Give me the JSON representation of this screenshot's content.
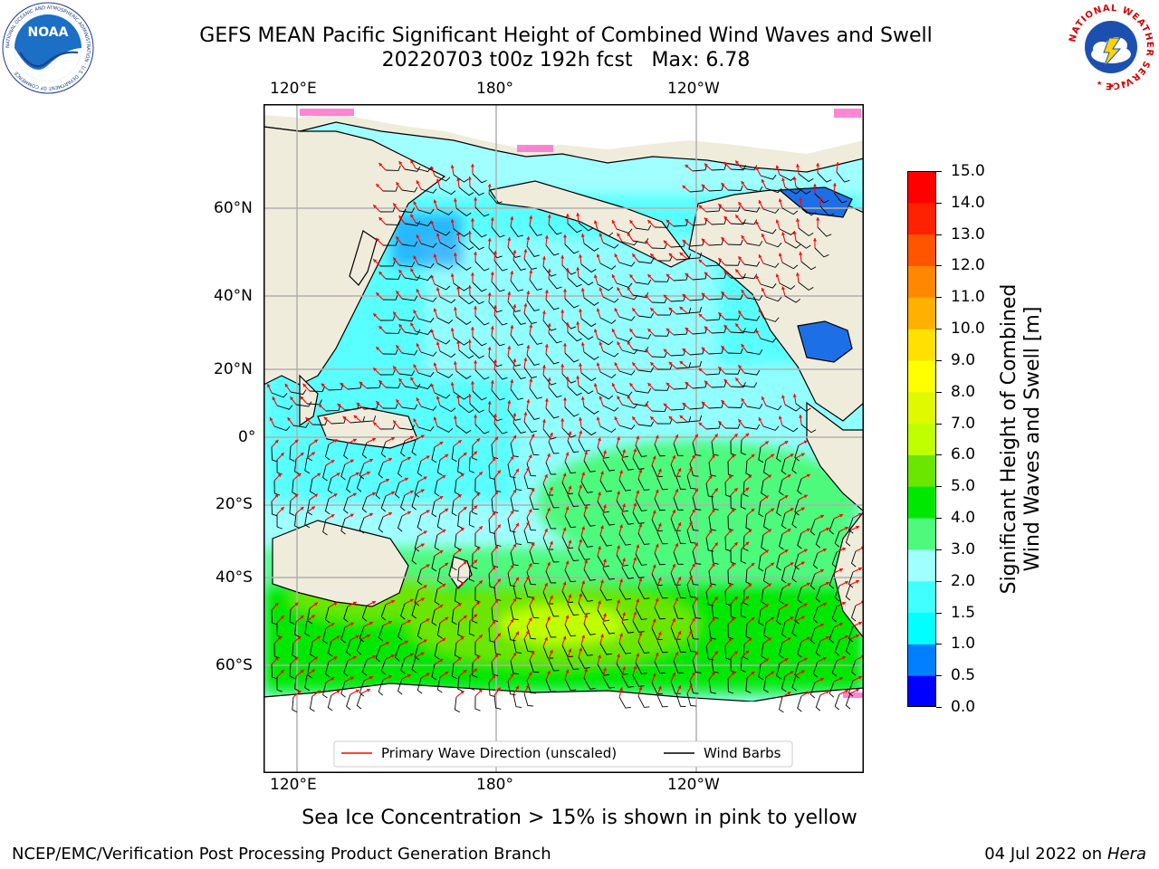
{
  "header": {
    "title_line1": "GEFS MEAN Pacific Significant Height of Combined Wind Waves and Swell",
    "title_line2": "20220703 t00z 192h fcst   Max: 6.78"
  },
  "logos": {
    "left_name": "noaa-logo",
    "left_text": "NOAA",
    "left_ring_text": "NATIONAL OCEANIC AND ATMOSPHERIC ADMINISTRATION · U.S. DEPARTMENT OF COMMERCE",
    "right_name": "nws-logo",
    "right_ring_text": "NATIONAL WEATHER SERVICE"
  },
  "map": {
    "lon_labels": [
      "120°E",
      "180°",
      "120°W"
    ],
    "lat_labels": [
      "60°N",
      "40°N",
      "20°N",
      "0°",
      "20°S",
      "40°S",
      "60°S"
    ],
    "land_color": "#efecdc",
    "ice_color": "#ffffff",
    "grid_color": "#b0b0b0"
  },
  "legend": {
    "wave_label": "Primary Wave Direction (unscaled)",
    "wave_color": "#ff0000",
    "barb_label": "Wind Barbs",
    "barb_color": "#000000"
  },
  "colorbar": {
    "label_line1": "Significant Height of Combined",
    "label_line2": "Wind Waves and Swell [m]",
    "ticks": [
      "15.0",
      "14.0",
      "13.0",
      "12.0",
      "11.0",
      "10.0",
      "9.0",
      "8.0",
      "7.0",
      "6.0",
      "5.0",
      "4.0",
      "3.0",
      "2.0",
      "1.5",
      "1.0",
      "0.5",
      "0.0"
    ],
    "colors": [
      "#0000ff",
      "#0080ff",
      "#00ffff",
      "#40ffff",
      "#a0ffff",
      "#4dfa7b",
      "#00e800",
      "#6ae600",
      "#c0ff00",
      "#e0f800",
      "#ffff00",
      "#ffe000",
      "#ffb000",
      "#ff8800",
      "#ff5500",
      "#ff2200",
      "#ff0000"
    ]
  },
  "footnote": "Sea Ice Concentration > 15% is shown in pink to yellow",
  "footer": {
    "left": "NCEP/EMC/Verification Post Processing Product Generation Branch",
    "date": "04 Jul 2022 on ",
    "host": "Hera"
  }
}
